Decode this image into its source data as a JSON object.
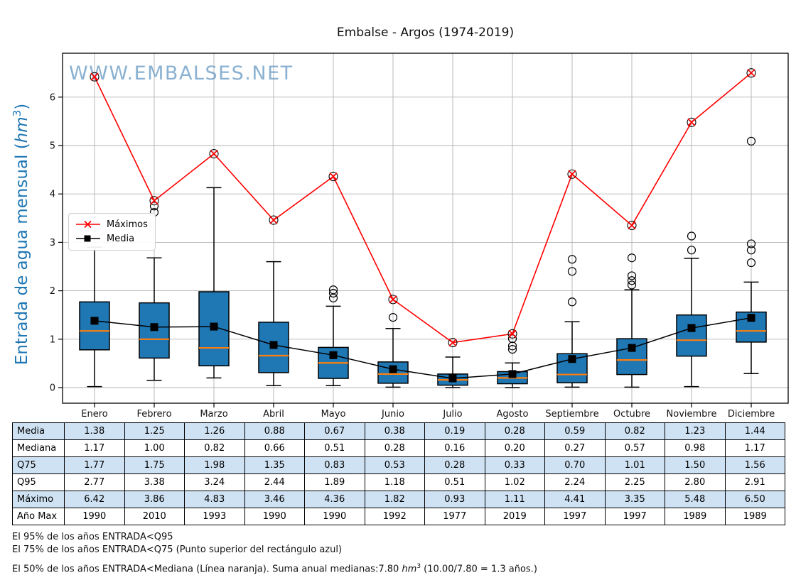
{
  "title": "Embalse - Argos (1974-2019)",
  "watermark": "WWW.EMBALSES.NET",
  "ylabel": {
    "pre": "Entrada de agua mensual (",
    "unit": "hm",
    "exp": "3",
    "close": ")"
  },
  "legend": {
    "maximos": "Máximos",
    "media": "Media"
  },
  "chart_data": {
    "type": "boxplot-with-lines",
    "categories": [
      "Enero",
      "Febrero",
      "Marzo",
      "Abril",
      "Mayo",
      "Junio",
      "Julio",
      "Agosto",
      "Septiembre",
      "Octubre",
      "Noviembre",
      "Diciembre"
    ],
    "yticks": [
      0,
      1,
      2,
      3,
      4,
      5,
      6
    ],
    "ylim": [
      -0.32,
      6.9
    ],
    "grid": true,
    "legend_position": "center-left",
    "series": [
      {
        "name": "Máximos",
        "type": "line",
        "marker": "x-in-circle",
        "values": [
          6.42,
          3.86,
          4.83,
          3.46,
          4.36,
          1.82,
          0.93,
          1.11,
          4.41,
          3.35,
          5.48,
          6.5
        ]
      },
      {
        "name": "Media",
        "type": "line",
        "marker": "square",
        "values": [
          1.38,
          1.25,
          1.26,
          0.88,
          0.67,
          0.38,
          0.19,
          0.28,
          0.59,
          0.82,
          1.23,
          1.44
        ]
      }
    ],
    "boxplots": {
      "median": [
        1.17,
        1.0,
        0.82,
        0.66,
        0.51,
        0.28,
        0.16,
        0.2,
        0.27,
        0.57,
        0.98,
        1.17
      ],
      "q1": [
        0.78,
        0.61,
        0.45,
        0.31,
        0.19,
        0.09,
        0.05,
        0.08,
        0.1,
        0.27,
        0.65,
        0.94
      ],
      "q3": [
        1.77,
        1.75,
        1.98,
        1.35,
        0.83,
        0.53,
        0.28,
        0.33,
        0.7,
        1.01,
        1.5,
        1.56
      ],
      "whisker_low": [
        0.02,
        0.15,
        0.2,
        0.04,
        0.04,
        0.01,
        0.0,
        0.0,
        0.01,
        0.01,
        0.02,
        0.29
      ],
      "whisker_high": [
        2.9,
        2.68,
        4.13,
        2.6,
        1.68,
        1.22,
        0.63,
        0.51,
        1.36,
        2.02,
        2.67,
        2.18
      ],
      "outliers": [
        [],
        [
          3.75,
          3.62
        ],
        [],
        [],
        [
          2.02,
          1.95,
          1.85
        ],
        [
          1.45
        ],
        [],
        [
          1.01,
          0.86,
          0.79
        ],
        [
          2.65,
          2.4,
          1.77
        ],
        [
          2.68,
          2.31,
          2.21,
          2.12
        ],
        [
          3.13,
          2.84
        ],
        [
          5.09,
          2.97,
          2.84,
          2.58
        ]
      ]
    },
    "colors": {
      "box_fill": "#1f77b4",
      "box_edge": "#000000",
      "median": "#ff7f0e",
      "max_line": "#ff0000",
      "mean_line": "#000000",
      "marker_edge": "#000000",
      "grid": "#b3b3b3",
      "frame": "#000000",
      "ylabel": "#1f77b4",
      "watermark": "#6d9ec6"
    }
  },
  "table": {
    "shaded_row_color": "#cfe2f3",
    "rows": [
      {
        "label": "Media",
        "values": [
          "1.38",
          "1.25",
          "1.26",
          "0.88",
          "0.67",
          "0.38",
          "0.19",
          "0.28",
          "0.59",
          "0.82",
          "1.23",
          "1.44"
        ]
      },
      {
        "label": "Mediana",
        "values": [
          "1.17",
          "1.00",
          "0.82",
          "0.66",
          "0.51",
          "0.28",
          "0.16",
          "0.20",
          "0.27",
          "0.57",
          "0.98",
          "1.17"
        ]
      },
      {
        "label": "Q75",
        "values": [
          "1.77",
          "1.75",
          "1.98",
          "1.35",
          "0.83",
          "0.53",
          "0.28",
          "0.33",
          "0.70",
          "1.01",
          "1.50",
          "1.56"
        ]
      },
      {
        "label": "Q95",
        "values": [
          "2.77",
          "3.38",
          "3.24",
          "2.44",
          "1.89",
          "1.18",
          "0.51",
          "1.02",
          "2.24",
          "2.25",
          "2.80",
          "2.91"
        ]
      },
      {
        "label": "Máximo",
        "values": [
          "6.42",
          "3.86",
          "4.83",
          "3.46",
          "4.36",
          "1.82",
          "0.93",
          "1.11",
          "4.41",
          "3.35",
          "5.48",
          "6.50"
        ]
      },
      {
        "label": "Año Max",
        "values": [
          "1990",
          "2010",
          "1993",
          "1990",
          "1990",
          "1992",
          "1977",
          "2019",
          "1997",
          "1997",
          "1989",
          "1989"
        ]
      }
    ]
  },
  "notes": {
    "line1": "El 95% de los años ENTRADA<Q95",
    "line2": "El 75% de los años ENTRADA<Q75 (Punto superior del rectángulo azul)",
    "line3_pre": "El 50% de los años ENTRADA<Mediana (Línea naranja). Suma anual medianas:7.80 ",
    "line3_unit": "hm",
    "line3_exp": "3",
    "line3_post": " (10.00/7.80 = 1.3 años.)"
  }
}
